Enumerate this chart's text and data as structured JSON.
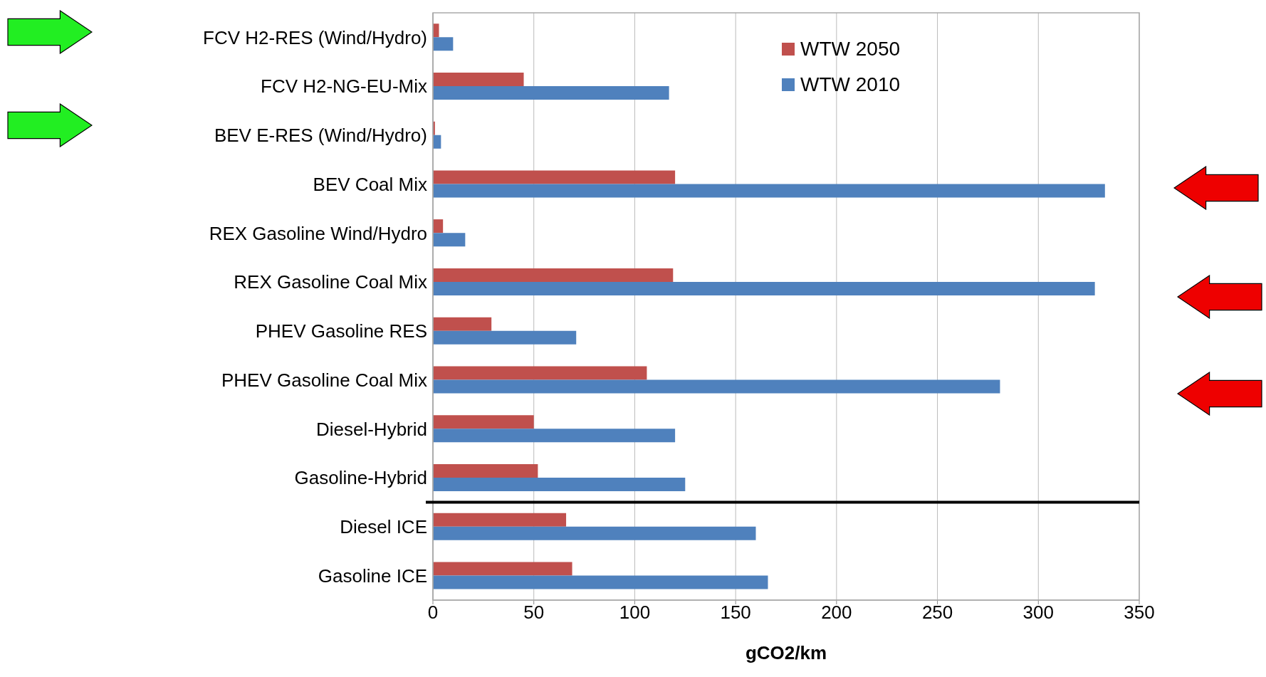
{
  "chart_data": {
    "type": "bar",
    "orientation": "horizontal",
    "xlabel": "gCO2/km",
    "categories": [
      "FCV H2-RES (Wind/Hydro)",
      "FCV H2-NG-EU-Mix",
      "BEV E-RES (Wind/Hydro)",
      "BEV Coal Mix",
      "REX Gasoline Wind/Hydro",
      "REX Gasoline Coal Mix",
      "PHEV Gasoline RES",
      "PHEV Gasoline Coal Mix",
      "Diesel-Hybrid",
      "Gasoline-Hybrid",
      "Diesel ICE",
      "Gasoline ICE"
    ],
    "series": [
      {
        "name": "WTW 2050",
        "color": "#c0504d",
        "values": [
          3,
          45,
          1,
          120,
          5,
          119,
          29,
          106,
          50,
          52,
          66,
          69
        ]
      },
      {
        "name": "WTW 2010",
        "color": "#4f81bd",
        "values": [
          10,
          117,
          4,
          333,
          16,
          328,
          71,
          281,
          120,
          125,
          160,
          166
        ]
      }
    ],
    "xlim": [
      0,
      350
    ],
    "xticks": [
      0,
      50,
      100,
      150,
      200,
      250,
      300,
      350
    ],
    "grid": "x",
    "legend": "top right",
    "ref_lines": [
      {
        "axis": "y",
        "value": "Diesel ICE",
        "color": "#000000"
      }
    ]
  }
}
